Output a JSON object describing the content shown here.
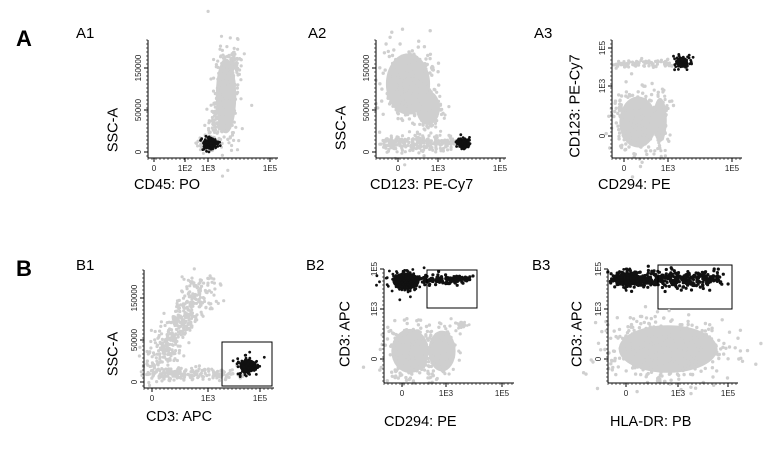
{
  "figure": {
    "row_labels": [
      "A",
      "B"
    ],
    "panels": [
      {
        "label": "A1",
        "xlabel": "CD45: PO",
        "ylabel": "SSC-A",
        "x_ticks": [
          "0",
          "1E2",
          "1E3",
          "1E5"
        ],
        "y_ticks": [
          "150000",
          "50000",
          "0"
        ]
      },
      {
        "label": "A2",
        "xlabel": "CD123: PE-Cy7",
        "ylabel": "SSC-A",
        "x_ticks": [
          "0",
          "1E3",
          "1E5"
        ],
        "y_ticks": [
          "150000",
          "50000",
          "0"
        ]
      },
      {
        "label": "A3",
        "xlabel": "CD294: PE",
        "ylabel": "CD123: PE-Cy7",
        "x_ticks": [
          "0",
          "1E3",
          "1E5"
        ],
        "y_ticks": [
          "1E5",
          "1E3",
          "0"
        ]
      },
      {
        "label": "B1",
        "xlabel": "CD3: APC",
        "ylabel": "SSC-A",
        "x_ticks": [
          "0",
          "1E3",
          "1E5"
        ],
        "y_ticks": [
          "150000",
          "50000",
          "0"
        ]
      },
      {
        "label": "B2",
        "xlabel": "CD294: PE",
        "ylabel": "CD3: APC",
        "x_ticks": [
          "0",
          "1E3",
          "1E5"
        ],
        "y_ticks": [
          "1E5",
          "1E3",
          "0"
        ]
      },
      {
        "label": "B3",
        "xlabel": "HLA-DR: PB",
        "ylabel": "CD3: APC",
        "x_ticks": [
          "0",
          "1E3",
          "1E5"
        ],
        "y_ticks": [
          "1E5",
          "1E3",
          "0"
        ]
      }
    ]
  },
  "colors": {
    "background_population": "#cfcfcf",
    "gated_population": "#111111",
    "axis": "#000000",
    "gate": "#000000"
  }
}
